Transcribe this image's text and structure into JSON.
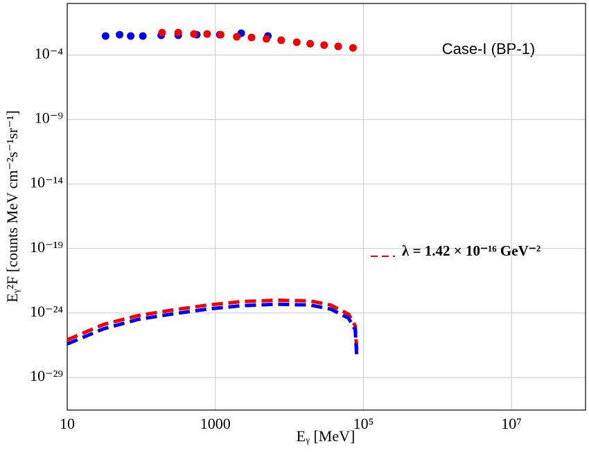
{
  "chart_data": {
    "type": "scatter",
    "x_label": "Eᵧ [MeV]",
    "y_label": "Eᵧ²F [counts MeV cm⁻²s⁻¹sr⁻¹]",
    "annotation": "Case-I (BP-1)",
    "xscale": "log",
    "yscale": "log",
    "grid": true,
    "legend": "right",
    "xlim": [
      10,
      100000000
    ],
    "ylim": [
      3e-32,
      1
    ],
    "xticks": [
      10,
      1000,
      {
        "value": 100000,
        "label": "10⁵"
      },
      {
        "value": 10000000,
        "label": "10⁷"
      }
    ],
    "yticks": [
      {
        "value": 0.0001,
        "label": "10⁻⁴"
      },
      {
        "value": 1e-09,
        "label": "10⁻⁹"
      },
      {
        "value": 1e-14,
        "label": "10⁻¹⁴"
      },
      {
        "value": 1e-19,
        "label": "10⁻¹⁹"
      },
      {
        "value": 1e-24,
        "label": "10⁻²⁴"
      },
      {
        "value": 1e-29,
        "label": "10⁻²⁹"
      }
    ],
    "series": [
      {
        "style": "markers",
        "color": "#0000ee",
        "x": [
          33,
          51,
          72,
          105,
          186,
          316,
          562,
          1150,
          2240,
          5130
        ],
        "values": [
          0.003,
          0.0038,
          0.003,
          0.003,
          0.0034,
          0.0034,
          0.0038,
          0.0038,
          0.0049,
          0.003
        ]
      },
      {
        "style": "markers",
        "color": "#ee0000",
        "x": [
          191,
          316,
          515,
          776,
          1180,
          1950,
          3090,
          4900,
          7760,
          12600,
          19100,
          29500,
          45700,
          72400
        ],
        "values": [
          0.0055,
          0.0055,
          0.0043,
          0.0043,
          0.0038,
          0.0026,
          0.0023,
          0.0018,
          0.0014,
          0.00098,
          0.00076,
          0.00059,
          0.00047,
          0.00036
        ]
      },
      {
        "style": "dashed",
        "color": "#ee0000",
        "name": "λ = 1.42 × 10⁻¹⁶ GeV⁻²",
        "x": [
          10,
          31,
          91,
          263,
          776,
          2240,
          6610,
          19100,
          36300,
          63100,
          77600,
          81300
        ],
        "values": [
          8.3e-27,
          1.3e-25,
          6.4e-25,
          1.7e-24,
          4.1e-24,
          7.6e-24,
          9.8e-24,
          8.7e-24,
          4.1e-24,
          8.1e-25,
          1e-25,
          1.3e-27
        ]
      },
      {
        "style": "dashed",
        "color": "#0000ee",
        "x": [
          10,
          31,
          91,
          263,
          776,
          2240,
          6610,
          19100,
          36300,
          63100,
          77600,
          81300
        ],
        "values": [
          4e-27,
          6e-26,
          3.2e-25,
          8.5e-25,
          2e-24,
          3.7e-24,
          4.8e-24,
          4.2e-24,
          2e-24,
          4e-25,
          5e-26,
          4e-28
        ]
      }
    ]
  }
}
